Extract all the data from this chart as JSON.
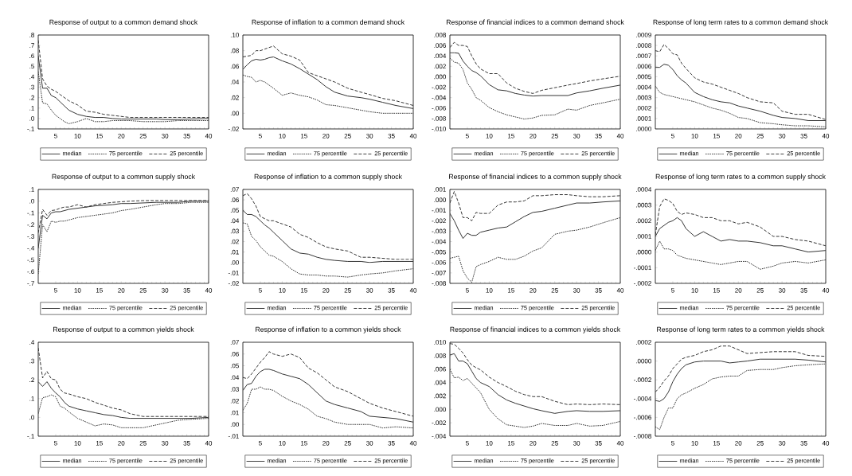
{
  "chart_data": [
    {
      "type": "line",
      "title": "Response of output to a common demand shock",
      "legend": "bottom",
      "x": [
        1,
        2,
        3,
        4,
        5,
        6,
        7,
        8,
        10,
        12,
        14,
        16,
        18,
        20,
        22,
        25,
        28,
        30,
        33,
        36,
        40
      ],
      "xlim": [
        1,
        40
      ],
      "xticks": [
        5,
        10,
        15,
        20,
        25,
        30,
        35,
        40
      ],
      "ylim": [
        -0.1,
        0.8
      ],
      "yticks": [
        {
          "value": -0.1,
          "label": "-.1"
        },
        {
          "value": 0.0,
          "label": ".0"
        },
        {
          "value": 0.1,
          "label": ".1"
        },
        {
          "value": 0.2,
          "label": ".2"
        },
        {
          "value": 0.3,
          "label": ".3"
        },
        {
          "value": 0.4,
          "label": ".4"
        },
        {
          "value": 0.5,
          "label": ".5"
        },
        {
          "value": 0.6,
          "label": ".6"
        },
        {
          "value": 0.7,
          "label": ".7"
        },
        {
          "value": 0.8,
          "label": ".8"
        }
      ],
      "series": [
        {
          "name": "median",
          "color": "#333333",
          "line_style": "solid",
          "values": [
            0.6,
            0.29,
            0.29,
            0.22,
            0.2,
            0.16,
            0.12,
            0.08,
            0.04,
            0.02,
            0.01,
            0.01,
            0.0,
            -0.005,
            -0.005,
            -0.005,
            -0.005,
            -0.01,
            -0.01,
            -0.005,
            0.0
          ]
        },
        {
          "name": "75 percentile",
          "color": "#333333",
          "line_style": "dotted",
          "values": [
            0.45,
            0.15,
            0.14,
            0.08,
            0.03,
            0.0,
            -0.03,
            -0.05,
            -0.03,
            0.0,
            -0.03,
            -0.03,
            -0.02,
            -0.02,
            -0.02,
            -0.03,
            -0.03,
            -0.03,
            -0.02,
            -0.02,
            -0.02
          ]
        },
        {
          "name": "25 percentile",
          "color": "#333333",
          "line_style": "dashed",
          "values": [
            0.75,
            0.38,
            0.31,
            0.28,
            0.26,
            0.23,
            0.2,
            0.17,
            0.13,
            0.07,
            0.06,
            0.04,
            0.03,
            0.02,
            0.01,
            0.01,
            0.01,
            0.01,
            0.01,
            0.01,
            0.01
          ]
        }
      ]
    },
    {
      "type": "line",
      "title": "Response of inflation to a common demand shock",
      "legend": "bottom",
      "x": [
        1,
        2,
        3,
        4,
        5,
        6,
        7,
        8,
        10,
        12,
        14,
        16,
        18,
        20,
        22,
        25,
        28,
        30,
        33,
        36,
        40
      ],
      "xlim": [
        1,
        40
      ],
      "xticks": [
        5,
        10,
        15,
        20,
        25,
        30,
        35,
        40
      ],
      "ylim": [
        -0.02,
        0.1
      ],
      "yticks": [
        {
          "value": -0.02,
          "label": "-.02"
        },
        {
          "value": 0.0,
          "label": ".00"
        },
        {
          "value": 0.02,
          "label": ".02"
        },
        {
          "value": 0.04,
          "label": ".04"
        },
        {
          "value": 0.06,
          "label": ".06"
        },
        {
          "value": 0.08,
          "label": ".08"
        },
        {
          "value": 0.1,
          "label": ".10"
        }
      ],
      "series": [
        {
          "name": "median",
          "color": "#333333",
          "line_style": "solid",
          "values": [
            0.056,
            0.062,
            0.067,
            0.069,
            0.068,
            0.069,
            0.071,
            0.072,
            0.067,
            0.063,
            0.057,
            0.05,
            0.043,
            0.034,
            0.027,
            0.022,
            0.02,
            0.018,
            0.014,
            0.01,
            0.006
          ]
        },
        {
          "name": "75 percentile",
          "color": "#333333",
          "line_style": "dotted",
          "values": [
            0.049,
            0.047,
            0.046,
            0.04,
            0.042,
            0.04,
            0.036,
            0.032,
            0.023,
            0.026,
            0.023,
            0.021,
            0.017,
            0.011,
            0.01,
            0.007,
            0.004,
            0.002,
            0.0,
            0.0,
            0.0
          ]
        },
        {
          "name": "25 percentile",
          "color": "#333333",
          "line_style": "dashed",
          "values": [
            0.072,
            0.073,
            0.074,
            0.08,
            0.08,
            0.082,
            0.084,
            0.086,
            0.076,
            0.073,
            0.068,
            0.052,
            0.048,
            0.044,
            0.04,
            0.032,
            0.027,
            0.024,
            0.019,
            0.016,
            0.01
          ]
        }
      ]
    },
    {
      "type": "line",
      "title": "Response of financial indices to a common demand shock",
      "legend": "bottom",
      "x": [
        1,
        2,
        3,
        4,
        5,
        6,
        7,
        8,
        10,
        12,
        14,
        16,
        18,
        20,
        22,
        25,
        28,
        30,
        33,
        36,
        40
      ],
      "xlim": [
        1,
        40
      ],
      "xticks": [
        5,
        10,
        15,
        20,
        25,
        30,
        35,
        40
      ],
      "ylim": [
        -0.01,
        0.008
      ],
      "yticks": [
        {
          "value": -0.01,
          "label": "-.010"
        },
        {
          "value": -0.008,
          "label": "-.008"
        },
        {
          "value": -0.006,
          "label": "-.006"
        },
        {
          "value": -0.004,
          "label": "-.004"
        },
        {
          "value": -0.002,
          "label": "-.002"
        },
        {
          "value": 0.0,
          "label": ".000"
        },
        {
          "value": 0.002,
          "label": ".002"
        },
        {
          "value": 0.004,
          "label": ".004"
        },
        {
          "value": 0.006,
          "label": ".006"
        },
        {
          "value": 0.008,
          "label": ".008"
        }
      ],
      "series": [
        {
          "name": "median",
          "color": "#333333",
          "line_style": "solid",
          "values": [
            0.0046,
            0.0046,
            0.0045,
            0.003,
            0.002,
            0.0012,
            0.0008,
            0.0002,
            -0.0015,
            -0.0025,
            -0.0027,
            -0.0032,
            -0.0035,
            -0.0037,
            -0.0036,
            -0.0036,
            -0.0036,
            -0.0031,
            -0.0027,
            -0.0022,
            -0.0016
          ]
        },
        {
          "name": "75 percentile",
          "color": "#333333",
          "line_style": "dotted",
          "values": [
            0.0036,
            0.0028,
            0.0026,
            0.0014,
            -0.0012,
            -0.0024,
            -0.004,
            -0.0045,
            -0.0059,
            -0.0067,
            -0.0073,
            -0.0077,
            -0.0081,
            -0.0079,
            -0.0074,
            -0.0073,
            -0.0062,
            -0.0064,
            -0.0055,
            -0.005,
            -0.0043
          ]
        },
        {
          "name": "25 percentile",
          "color": "#333333",
          "line_style": "dashed",
          "values": [
            0.0056,
            0.0066,
            0.006,
            0.006,
            0.0058,
            0.004,
            0.0025,
            0.0015,
            0.0006,
            0.0006,
            -0.0012,
            -0.0022,
            -0.0028,
            -0.0032,
            -0.0026,
            -0.0021,
            -0.0016,
            -0.0013,
            -0.0008,
            -0.0004,
            0.0001
          ]
        }
      ]
    },
    {
      "type": "line",
      "title": "Response of long term rates to a common demand shock",
      "legend": "bottom",
      "x": [
        1,
        2,
        3,
        4,
        5,
        6,
        7,
        8,
        10,
        12,
        14,
        16,
        18,
        20,
        22,
        25,
        28,
        30,
        33,
        36,
        40
      ],
      "xlim": [
        1,
        40
      ],
      "xticks": [
        5,
        10,
        15,
        20,
        25,
        30,
        35,
        40
      ],
      "ylim": [
        0.0,
        0.0009
      ],
      "yticks": [
        {
          "value": 0.0,
          "label": ".0000"
        },
        {
          "value": 0.0001,
          "label": ".0001"
        },
        {
          "value": 0.0002,
          "label": ".0002"
        },
        {
          "value": 0.0003,
          "label": ".0003"
        },
        {
          "value": 0.0004,
          "label": ".0004"
        },
        {
          "value": 0.0005,
          "label": ".0005"
        },
        {
          "value": 0.0006,
          "label": ".0006"
        },
        {
          "value": 0.0007,
          "label": ".0007"
        },
        {
          "value": 0.0008,
          "label": ".0008"
        },
        {
          "value": 0.0009,
          "label": ".0009"
        }
      ],
      "series": [
        {
          "name": "median",
          "color": "#333333",
          "line_style": "solid",
          "values": [
            0.00059,
            0.00059,
            0.00062,
            0.00061,
            0.00057,
            0.00051,
            0.00047,
            0.00044,
            0.00035,
            0.00031,
            0.00028,
            0.00026,
            0.00025,
            0.00022,
            0.0002,
            0.00017,
            0.00013,
            0.00011,
            0.0001,
            8e-05,
            8e-05
          ]
        },
        {
          "name": "75 percentile",
          "color": "#333333",
          "line_style": "dotted",
          "values": [
            0.00041,
            0.00035,
            0.00033,
            0.00032,
            0.00031,
            0.0003,
            0.00029,
            0.00028,
            0.00026,
            0.00023,
            0.0002,
            0.00018,
            0.00015,
            0.00011,
            0.0001,
            6e-05,
            5e-05,
            4e-05,
            3e-05,
            3e-05,
            2e-05
          ]
        },
        {
          "name": "25 percentile",
          "color": "#333333",
          "line_style": "dashed",
          "values": [
            0.00075,
            0.00074,
            0.00081,
            0.00077,
            0.00072,
            0.00071,
            0.00063,
            0.00058,
            0.00049,
            0.00045,
            0.00043,
            0.0004,
            0.00037,
            0.00034,
            0.0003,
            0.00026,
            0.00025,
            0.00017,
            0.00014,
            0.00014,
            9e-05
          ]
        }
      ]
    },
    {
      "type": "line",
      "title": "Response of output to a common supply shock",
      "legend": "bottom",
      "x": [
        1,
        2,
        3,
        4,
        5,
        6,
        7,
        8,
        10,
        12,
        14,
        16,
        18,
        20,
        22,
        25,
        28,
        30,
        33,
        36,
        40
      ],
      "xlim": [
        1,
        40
      ],
      "xticks": [
        5,
        10,
        15,
        20,
        25,
        30,
        35,
        40
      ],
      "ylim": [
        -0.7,
        0.1
      ],
      "yticks": [
        {
          "value": -0.7,
          "label": "-.7"
        },
        {
          "value": -0.6,
          "label": "-.6"
        },
        {
          "value": -0.5,
          "label": "-.5"
        },
        {
          "value": -0.4,
          "label": "-.4"
        },
        {
          "value": -0.3,
          "label": "-.3"
        },
        {
          "value": -0.2,
          "label": "-.2"
        },
        {
          "value": -0.1,
          "label": "-.1"
        },
        {
          "value": 0.0,
          "label": ".0"
        },
        {
          "value": 0.1,
          "label": ".1"
        }
      ],
      "series": [
        {
          "name": "median",
          "color": "#333333",
          "line_style": "solid",
          "values": [
            -0.4,
            -0.12,
            -0.15,
            -0.1,
            -0.09,
            -0.09,
            -0.08,
            -0.07,
            -0.06,
            -0.05,
            -0.04,
            -0.035,
            -0.03,
            -0.02,
            -0.02,
            -0.015,
            -0.01,
            -0.01,
            -0.01,
            0.0,
            0.0
          ]
        },
        {
          "name": "75 percentile",
          "color": "#333333",
          "line_style": "dotted",
          "values": [
            -0.62,
            -0.2,
            -0.26,
            -0.17,
            -0.18,
            -0.17,
            -0.17,
            -0.16,
            -0.14,
            -0.13,
            -0.12,
            -0.11,
            -0.1,
            -0.08,
            -0.07,
            -0.05,
            -0.03,
            -0.02,
            -0.02,
            -0.01,
            -0.01
          ]
        },
        {
          "name": "25 percentile",
          "color": "#333333",
          "line_style": "dashed",
          "values": [
            -0.27,
            -0.07,
            -0.12,
            -0.08,
            -0.075,
            -0.06,
            -0.05,
            -0.05,
            -0.03,
            -0.05,
            -0.03,
            -0.02,
            -0.01,
            -0.005,
            0.0,
            0.005,
            0.005,
            0.005,
            0.005,
            0.005,
            0.005
          ]
        }
      ]
    },
    {
      "type": "line",
      "title": "Response of inflation to a common supply shock",
      "legend": "bottom",
      "x": [
        1,
        2,
        3,
        4,
        5,
        6,
        7,
        8,
        10,
        12,
        14,
        16,
        18,
        20,
        22,
        25,
        28,
        30,
        33,
        36,
        40
      ],
      "xlim": [
        1,
        40
      ],
      "xticks": [
        5,
        10,
        15,
        20,
        25,
        30,
        35,
        40
      ],
      "ylim": [
        -0.02,
        0.07
      ],
      "yticks": [
        {
          "value": -0.02,
          "label": "-.02"
        },
        {
          "value": -0.01,
          "label": "-.01"
        },
        {
          "value": 0.0,
          "label": ".00"
        },
        {
          "value": 0.01,
          "label": ".01"
        },
        {
          "value": 0.02,
          "label": ".02"
        },
        {
          "value": 0.03,
          "label": ".03"
        },
        {
          "value": 0.04,
          "label": ".04"
        },
        {
          "value": 0.05,
          "label": ".05"
        },
        {
          "value": 0.06,
          "label": ".06"
        },
        {
          "value": 0.07,
          "label": ".07"
        }
      ],
      "series": [
        {
          "name": "median",
          "color": "#333333",
          "line_style": "solid",
          "values": [
            0.05,
            0.046,
            0.046,
            0.044,
            0.04,
            0.036,
            0.033,
            0.029,
            0.021,
            0.013,
            0.009,
            0.008,
            0.005,
            0.003,
            0.002,
            0.001,
            0.001,
            0.0,
            0.001,
            0.001,
            0.001
          ]
        },
        {
          "name": "75 percentile",
          "color": "#333333",
          "line_style": "dotted",
          "values": [
            0.038,
            0.037,
            0.025,
            0.021,
            0.015,
            0.011,
            0.007,
            0.006,
            0.001,
            -0.006,
            -0.011,
            -0.012,
            -0.012,
            -0.013,
            -0.013,
            -0.014,
            -0.012,
            -0.011,
            -0.01,
            -0.008,
            -0.006
          ]
        },
        {
          "name": "25 percentile",
          "color": "#333333",
          "line_style": "dashed",
          "values": [
            0.064,
            0.066,
            0.061,
            0.054,
            0.044,
            0.042,
            0.04,
            0.04,
            0.037,
            0.034,
            0.027,
            0.024,
            0.019,
            0.015,
            0.013,
            0.011,
            0.005,
            0.005,
            0.004,
            0.003,
            0.003
          ]
        }
      ]
    },
    {
      "type": "line",
      "title": "Response of financial indices to a common supply shock",
      "legend": "bottom",
      "x": [
        1,
        2,
        3,
        4,
        5,
        6,
        7,
        8,
        10,
        12,
        14,
        16,
        18,
        20,
        22,
        25,
        28,
        30,
        33,
        36,
        40
      ],
      "xlim": [
        1,
        40
      ],
      "xticks": [
        5,
        10,
        15,
        20,
        25,
        30,
        35,
        40
      ],
      "ylim": [
        -0.008,
        0.001
      ],
      "yticks": [
        {
          "value": -0.008,
          "label": "-.008"
        },
        {
          "value": -0.007,
          "label": "-.007"
        },
        {
          "value": -0.006,
          "label": "-.006"
        },
        {
          "value": -0.005,
          "label": "-.005"
        },
        {
          "value": -0.004,
          "label": "-.004"
        },
        {
          "value": -0.003,
          "label": "-.003"
        },
        {
          "value": -0.002,
          "label": "-.002"
        },
        {
          "value": -0.001,
          "label": "-.001"
        },
        {
          "value": 0.0,
          "label": ".000"
        },
        {
          "value": 0.001,
          "label": ".001"
        }
      ],
      "series": [
        {
          "name": "median",
          "color": "#333333",
          "line_style": "solid",
          "values": [
            -0.0013,
            -0.002,
            -0.0029,
            -0.0037,
            -0.0032,
            -0.0034,
            -0.0034,
            -0.0031,
            -0.0029,
            -0.0027,
            -0.0026,
            -0.0021,
            -0.0016,
            -0.0012,
            -0.0011,
            -0.0008,
            -0.0005,
            -0.0003,
            -0.0003,
            -0.0002,
            -0.0001
          ]
        },
        {
          "name": "75 percentile",
          "color": "#333333",
          "line_style": "dotted",
          "values": [
            -0.0056,
            -0.0055,
            -0.0054,
            -0.0068,
            -0.0075,
            -0.0079,
            -0.0064,
            -0.0062,
            -0.0059,
            -0.0055,
            -0.0057,
            -0.0057,
            -0.0054,
            -0.0049,
            -0.0046,
            -0.0033,
            -0.003,
            -0.0029,
            -0.0026,
            -0.0022,
            -0.0017
          ]
        },
        {
          "name": "25 percentile",
          "color": "#333333",
          "line_style": "dashed",
          "values": [
            -0.0003,
            0.0008,
            -0.0003,
            -0.0017,
            -0.0017,
            -0.002,
            -0.0012,
            -0.0013,
            -0.0013,
            -0.0005,
            -0.0002,
            -0.0002,
            -0.0001,
            0.0004,
            0.0004,
            0.0005,
            0.0005,
            0.0004,
            0.0003,
            0.0003,
            0.0004
          ]
        }
      ]
    },
    {
      "type": "line",
      "title": "Response of long term rates to a common supply shock",
      "legend": "bottom",
      "x": [
        1,
        2,
        3,
        4,
        5,
        6,
        7,
        8,
        10,
        12,
        14,
        16,
        18,
        20,
        22,
        25,
        28,
        30,
        33,
        36,
        40
      ],
      "xlim": [
        1,
        40
      ],
      "xticks": [
        5,
        10,
        15,
        20,
        25,
        30,
        35,
        40
      ],
      "ylim": [
        -0.0002,
        0.0004
      ],
      "yticks": [
        {
          "value": -0.0002,
          "label": "-.0002"
        },
        {
          "value": -0.0001,
          "label": "-.0001"
        },
        {
          "value": 0.0,
          "label": ".0000"
        },
        {
          "value": 0.0001,
          "label": ".0001"
        },
        {
          "value": 0.0002,
          "label": ".0002"
        },
        {
          "value": 0.0003,
          "label": ".0003"
        },
        {
          "value": 0.0004,
          "label": ".0004"
        }
      ],
      "series": [
        {
          "name": "median",
          "color": "#333333",
          "line_style": "solid",
          "values": [
            0.0001,
            0.00015,
            0.00017,
            0.00019,
            0.0002,
            0.00022,
            0.0002,
            0.00015,
            0.0001,
            0.00013,
            0.0001,
            7e-05,
            8e-05,
            7e-05,
            7e-05,
            6e-05,
            4e-05,
            4e-05,
            2e-05,
            0.0,
            1e-05
          ]
        },
        {
          "name": "75 percentile",
          "color": "#333333",
          "line_style": "dotted",
          "values": [
            1e-05,
            7e-05,
            2e-05,
            2e-05,
            1e-05,
            -2e-05,
            -3e-05,
            -4e-05,
            -5e-05,
            -6e-05,
            -7e-05,
            -8e-05,
            -7e-05,
            -6e-05,
            -6e-05,
            -0.00011,
            -9e-05,
            -7e-05,
            -6e-05,
            -7e-05,
            -5e-05
          ]
        },
        {
          "name": "25 percentile",
          "color": "#333333",
          "line_style": "dashed",
          "values": [
            0.00011,
            0.00029,
            0.00034,
            0.00033,
            0.00031,
            0.00026,
            0.00024,
            0.00025,
            0.00024,
            0.00022,
            0.00022,
            0.0002,
            0.0002,
            0.00018,
            0.00019,
            0.00016,
            0.0001,
            0.0001,
            8e-05,
            7e-05,
            4e-05
          ]
        }
      ]
    },
    {
      "type": "line",
      "title": "Response of output to a common yields shock",
      "legend": "bottom",
      "x": [
        1,
        2,
        3,
        4,
        5,
        6,
        7,
        8,
        10,
        12,
        14,
        16,
        18,
        20,
        22,
        25,
        28,
        30,
        33,
        36,
        40
      ],
      "xlim": [
        1,
        40
      ],
      "xticks": [
        5,
        10,
        15,
        20,
        25,
        30,
        35,
        40
      ],
      "ylim": [
        -0.1,
        0.4
      ],
      "yticks": [
        {
          "value": -0.1,
          "label": "-.1"
        },
        {
          "value": 0.0,
          "label": ".0"
        },
        {
          "value": 0.1,
          "label": ".1"
        },
        {
          "value": 0.2,
          "label": ".2"
        },
        {
          "value": 0.3,
          "label": ".3"
        },
        {
          "value": 0.4,
          "label": ".4"
        }
      ],
      "series": [
        {
          "name": "median",
          "color": "#333333",
          "line_style": "solid",
          "values": [
            0.19,
            0.165,
            0.19,
            0.155,
            0.13,
            0.11,
            0.08,
            0.06,
            0.045,
            0.035,
            0.025,
            0.015,
            0.01,
            0.0,
            -0.005,
            -0.005,
            -0.005,
            -0.005,
            -0.005,
            -0.005,
            0.0
          ]
        },
        {
          "name": "75 percentile",
          "color": "#333333",
          "line_style": "dotted",
          "values": [
            0.02,
            0.105,
            0.11,
            0.12,
            0.11,
            0.06,
            0.05,
            0.03,
            -0.005,
            -0.025,
            -0.045,
            -0.035,
            -0.04,
            -0.055,
            -0.055,
            -0.055,
            -0.04,
            -0.03,
            -0.015,
            -0.01,
            -0.005
          ]
        },
        {
          "name": "25 percentile",
          "color": "#333333",
          "line_style": "dashed",
          "values": [
            0.37,
            0.21,
            0.245,
            0.205,
            0.2,
            0.15,
            0.13,
            0.125,
            0.11,
            0.1,
            0.08,
            0.065,
            0.05,
            0.04,
            0.02,
            0.005,
            0.005,
            0.005,
            0.005,
            0.005,
            0.005
          ]
        }
      ]
    },
    {
      "type": "line",
      "title": "Response of inflation to a common yields shock",
      "legend": "bottom",
      "x": [
        1,
        2,
        3,
        4,
        5,
        6,
        7,
        8,
        10,
        12,
        14,
        16,
        18,
        20,
        22,
        25,
        28,
        30,
        33,
        36,
        40
      ],
      "xlim": [
        1,
        40
      ],
      "xticks": [
        5,
        10,
        15,
        20,
        25,
        30,
        35,
        40
      ],
      "ylim": [
        -0.01,
        0.07
      ],
      "yticks": [
        {
          "value": -0.01,
          "label": "-.01"
        },
        {
          "value": 0.0,
          "label": ".00"
        },
        {
          "value": 0.01,
          "label": ".01"
        },
        {
          "value": 0.02,
          "label": ".02"
        },
        {
          "value": 0.03,
          "label": ".03"
        },
        {
          "value": 0.04,
          "label": ".04"
        },
        {
          "value": 0.05,
          "label": ".05"
        },
        {
          "value": 0.06,
          "label": ".06"
        },
        {
          "value": 0.07,
          "label": ".07"
        }
      ],
      "series": [
        {
          "name": "median",
          "color": "#333333",
          "line_style": "solid",
          "values": [
            0.029,
            0.034,
            0.035,
            0.041,
            0.045,
            0.047,
            0.047,
            0.046,
            0.043,
            0.041,
            0.039,
            0.034,
            0.027,
            0.02,
            0.017,
            0.014,
            0.011,
            0.007,
            0.006,
            0.005,
            0.002
          ]
        },
        {
          "name": "75 percentile",
          "color": "#333333",
          "line_style": "dotted",
          "values": [
            0.012,
            0.018,
            0.03,
            0.03,
            0.032,
            0.03,
            0.03,
            0.029,
            0.024,
            0.02,
            0.017,
            0.013,
            0.007,
            0.005,
            0.002,
            0.0,
            0.0,
            0.0,
            -0.003,
            -0.002,
            -0.003
          ]
        },
        {
          "name": "25 percentile",
          "color": "#333333",
          "line_style": "dashed",
          "values": [
            0.04,
            0.039,
            0.043,
            0.048,
            0.053,
            0.057,
            0.062,
            0.06,
            0.058,
            0.06,
            0.057,
            0.048,
            0.044,
            0.038,
            0.032,
            0.028,
            0.022,
            0.018,
            0.014,
            0.011,
            0.007
          ]
        }
      ]
    },
    {
      "type": "line",
      "title": "Response of financial indices to a common yields shock",
      "legend": "bottom",
      "x": [
        1,
        2,
        3,
        4,
        5,
        6,
        7,
        8,
        10,
        12,
        14,
        16,
        18,
        20,
        22,
        25,
        28,
        30,
        33,
        36,
        40
      ],
      "xlim": [
        1,
        40
      ],
      "xticks": [
        5,
        10,
        15,
        20,
        25,
        30,
        35,
        40
      ],
      "ylim": [
        -0.004,
        0.01
      ],
      "yticks": [
        {
          "value": -0.004,
          "label": "-.004"
        },
        {
          "value": -0.002,
          "label": "-.002"
        },
        {
          "value": 0.0,
          "label": ".000"
        },
        {
          "value": 0.002,
          "label": ".002"
        },
        {
          "value": 0.004,
          "label": ".004"
        },
        {
          "value": 0.006,
          "label": ".006"
        },
        {
          "value": 0.008,
          "label": ".008"
        },
        {
          "value": 0.01,
          "label": ".010"
        }
      ],
      "series": [
        {
          "name": "median",
          "color": "#333333",
          "line_style": "solid",
          "values": [
            0.0081,
            0.0083,
            0.0072,
            0.0072,
            0.0068,
            0.0057,
            0.0046,
            0.004,
            0.0034,
            0.0022,
            0.0014,
            0.0009,
            0.0005,
            0.0001,
            -0.0002,
            -0.0006,
            -0.0003,
            -0.0002,
            -0.0003,
            -0.0003,
            -0.0002
          ]
        },
        {
          "name": "75 percentile",
          "color": "#333333",
          "line_style": "dotted",
          "values": [
            0.006,
            0.0047,
            0.0048,
            0.0043,
            0.0046,
            0.0039,
            0.0032,
            0.0025,
            0.0,
            -0.0014,
            -0.0023,
            -0.0025,
            -0.0027,
            -0.0025,
            -0.0021,
            -0.0024,
            -0.0024,
            -0.0021,
            -0.0025,
            -0.0024,
            -0.0018
          ]
        },
        {
          "name": "25 percentile",
          "color": "#333333",
          "line_style": "dashed",
          "values": [
            0.0098,
            0.0097,
            0.0091,
            0.0084,
            0.0074,
            0.0066,
            0.0062,
            0.0059,
            0.0048,
            0.004,
            0.0034,
            0.0027,
            0.0022,
            0.0019,
            0.0019,
            0.0012,
            0.0007,
            0.0008,
            0.0007,
            0.0008,
            0.0007
          ]
        }
      ]
    },
    {
      "type": "line",
      "title": "Response of long term rates to a common yields shock",
      "legend": "bottom",
      "x": [
        1,
        2,
        3,
        4,
        5,
        6,
        7,
        8,
        10,
        12,
        14,
        16,
        18,
        20,
        22,
        25,
        28,
        30,
        33,
        36,
        40
      ],
      "xlim": [
        1,
        40
      ],
      "xticks": [
        5,
        10,
        15,
        20,
        25,
        30,
        35,
        40
      ],
      "ylim": [
        -0.0008,
        0.0002
      ],
      "yticks": [
        {
          "value": -0.0008,
          "label": "-.0008"
        },
        {
          "value": -0.0006,
          "label": "-.0006"
        },
        {
          "value": -0.0004,
          "label": "-.0004"
        },
        {
          "value": -0.0002,
          "label": "-.0002"
        },
        {
          "value": 0.0,
          "label": ".0000"
        },
        {
          "value": 0.0002,
          "label": ".0002"
        }
      ],
      "series": [
        {
          "name": "median",
          "color": "#333333",
          "line_style": "solid",
          "values": [
            -0.00042,
            -0.00043,
            -0.0004,
            -0.00033,
            -0.00022,
            -0.00014,
            -8e-05,
            -4e-05,
            -1e-05,
            0.0,
            0.0,
            0.0,
            -2e-05,
            -1e-05,
            0.0,
            2e-05,
            2e-05,
            2e-05,
            2e-05,
            1e-05,
            -1e-05
          ]
        },
        {
          "name": "75 percentile",
          "color": "#333333",
          "line_style": "dotted",
          "values": [
            -0.0007,
            -0.00073,
            -0.0006,
            -0.0005,
            -0.0005,
            -0.0004,
            -0.00036,
            -0.00034,
            -0.00029,
            -0.00025,
            -0.00019,
            -0.00017,
            -0.00016,
            -0.00016,
            -0.0001,
            -9e-05,
            -9e-05,
            -7e-05,
            -5e-05,
            -4e-05,
            -3e-05
          ]
        },
        {
          "name": "25 percentile",
          "color": "#333333",
          "line_style": "dashed",
          "values": [
            -0.00033,
            -0.00028,
            -0.00021,
            -0.00016,
            -8e-05,
            -3e-05,
            2e-05,
            4e-05,
            6e-05,
            0.0001,
            0.00012,
            0.00016,
            0.00016,
            0.00012,
            8e-05,
            9e-05,
            0.0001,
            0.0001,
            0.0001,
            6e-05,
            5e-05
          ]
        }
      ]
    }
  ]
}
